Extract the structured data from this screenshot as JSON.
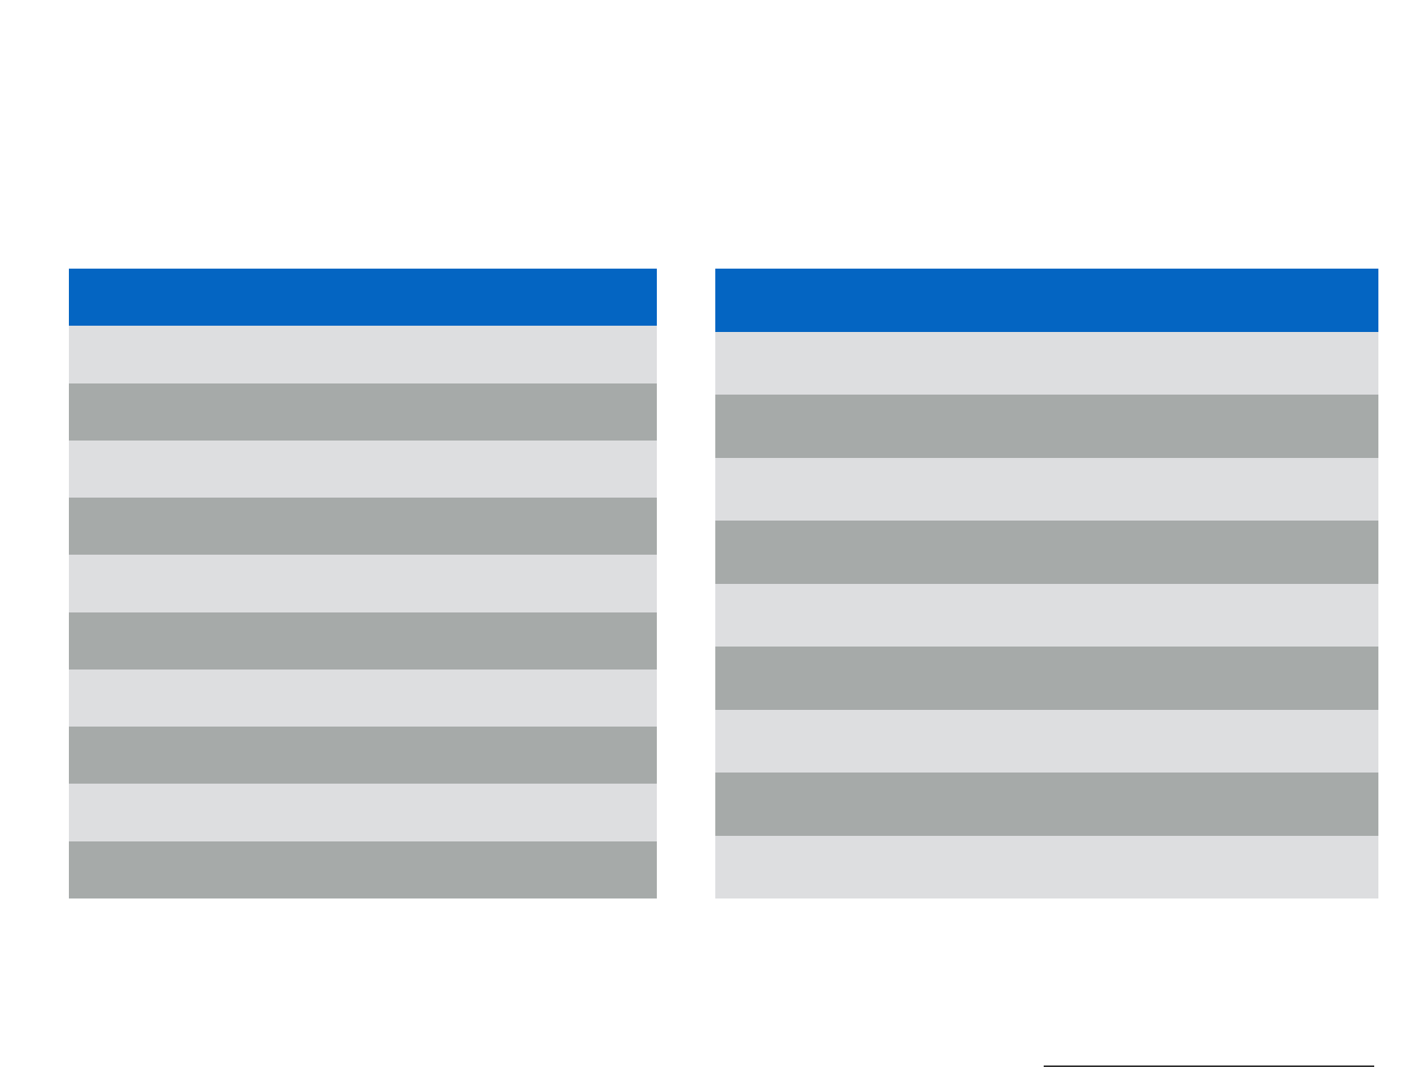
{
  "colors": {
    "header": "#0465c2",
    "row_light": "#dddee0",
    "row_dark": "#a6aaa9",
    "background": "#ffffff",
    "rule": "#1a1a1a"
  },
  "tables": {
    "left": {
      "header": "",
      "rows": [
        "",
        "",
        "",
        "",
        "",
        "",
        "",
        "",
        "",
        ""
      ]
    },
    "right": {
      "header": "",
      "rows": [
        "",
        "",
        "",
        "",
        "",
        "",
        "",
        "",
        "",
        ""
      ]
    }
  }
}
